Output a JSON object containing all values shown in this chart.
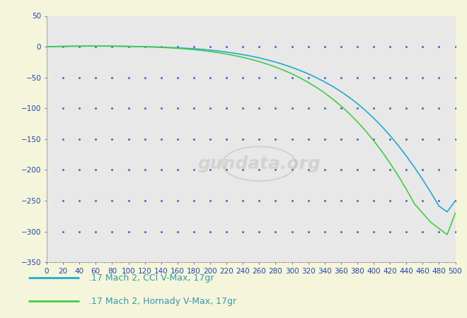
{
  "background_outer": "#f5f5dc",
  "background_plot": "#e8e8e8",
  "xlim": [
    0,
    500
  ],
  "ylim": [
    -350,
    50
  ],
  "xticks": [
    0,
    20,
    40,
    60,
    80,
    100,
    120,
    140,
    160,
    180,
    200,
    220,
    240,
    260,
    280,
    300,
    320,
    340,
    360,
    380,
    400,
    420,
    440,
    460,
    480,
    500
  ],
  "yticks": [
    50,
    0,
    -50,
    -100,
    -150,
    -200,
    -250,
    -300,
    -350
  ],
  "grid_color": "#3366cc",
  "series": [
    {
      "label": ".17 Mach 2, CCI V-Max, 17gr",
      "color": "#22aacc",
      "x": [
        0,
        10,
        20,
        30,
        40,
        50,
        60,
        70,
        80,
        90,
        100,
        110,
        120,
        130,
        140,
        150,
        160,
        170,
        180,
        190,
        200,
        210,
        220,
        230,
        240,
        250,
        260,
        270,
        280,
        290,
        300,
        310,
        320,
        330,
        340,
        350,
        360,
        370,
        380,
        390,
        400,
        410,
        420,
        430,
        440,
        450,
        460,
        470,
        480,
        490,
        500
      ],
      "y": [
        0,
        0.3,
        0.5,
        0.7,
        0.8,
        0.9,
        0.9,
        0.9,
        0.8,
        0.7,
        0.5,
        0.3,
        0.0,
        -0.3,
        -0.7,
        -1.2,
        -1.8,
        -2.5,
        -3.3,
        -4.3,
        -5.5,
        -7.0,
        -8.7,
        -10.6,
        -12.8,
        -15.3,
        -18.1,
        -21.4,
        -25.0,
        -29.0,
        -33.5,
        -38.5,
        -44.0,
        -50.2,
        -57.0,
        -64.5,
        -72.8,
        -82.0,
        -92.2,
        -103.5,
        -115.8,
        -129.3,
        -144.0,
        -160.0,
        -177.3,
        -195.8,
        -215.5,
        -236.5,
        -258.7,
        -268.0,
        -250.0
      ]
    },
    {
      "label": ".17 Mach 2, Hornady V-Max, 17gr",
      "color": "#44cc44",
      "x": [
        0,
        10,
        20,
        30,
        40,
        50,
        60,
        70,
        80,
        90,
        100,
        110,
        120,
        130,
        140,
        150,
        160,
        170,
        180,
        190,
        200,
        210,
        220,
        230,
        240,
        250,
        260,
        270,
        280,
        290,
        300,
        310,
        320,
        330,
        340,
        350,
        360,
        370,
        380,
        390,
        400,
        410,
        420,
        430,
        440,
        450,
        460,
        470,
        480,
        490,
        500
      ],
      "y": [
        0,
        0.3,
        0.6,
        0.8,
        1.0,
        1.1,
        1.1,
        1.1,
        1.0,
        0.8,
        0.6,
        0.3,
        -0.1,
        -0.5,
        -1.1,
        -1.8,
        -2.6,
        -3.6,
        -4.8,
        -6.2,
        -7.8,
        -9.7,
        -11.9,
        -14.4,
        -17.2,
        -20.5,
        -24.1,
        -28.3,
        -32.9,
        -38.2,
        -44.0,
        -50.6,
        -57.9,
        -66.0,
        -75.0,
        -85.0,
        -96.0,
        -108.2,
        -121.6,
        -136.3,
        -152.3,
        -169.8,
        -188.7,
        -209.2,
        -231.2,
        -255.0,
        -270.0,
        -285.0,
        -295.0,
        -305.0,
        -270.0
      ]
    }
  ],
  "legend_text_color": "#3399aa",
  "tick_color": "#2244aa",
  "tick_fontsize": 7.5,
  "watermark_text": "gundata.org",
  "watermark_color": "#aaaaaa",
  "watermark_alpha": 0.35
}
